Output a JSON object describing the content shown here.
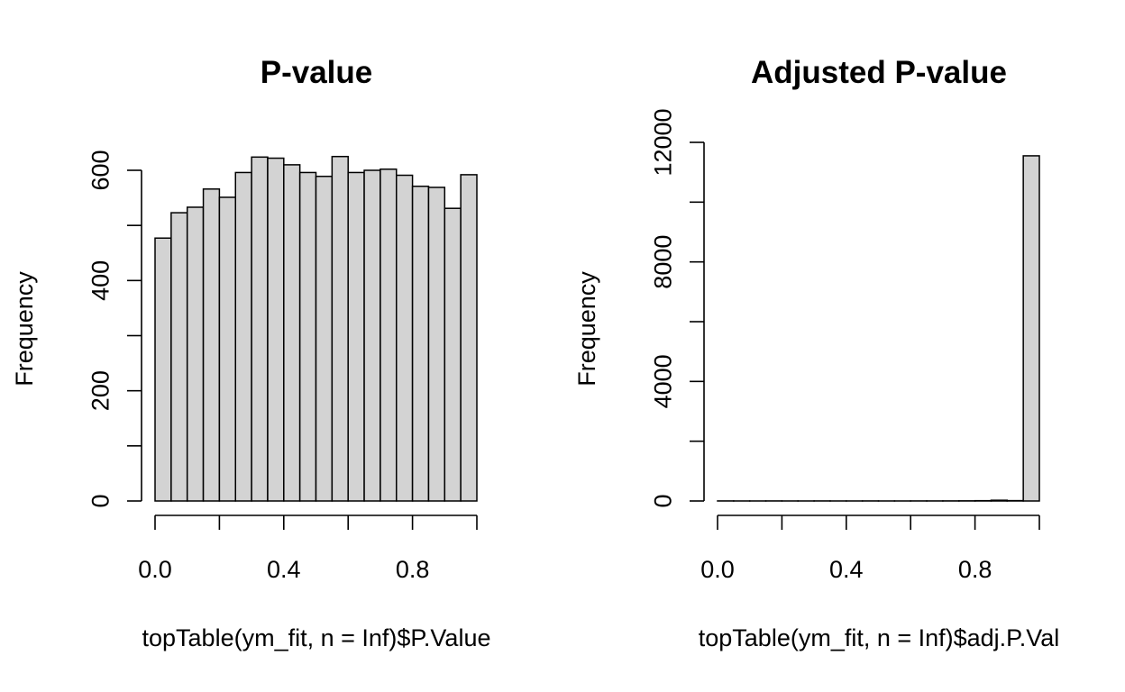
{
  "chart_data": [
    {
      "type": "bar",
      "subtype": "histogram",
      "title": "P-value",
      "xlabel": "topTable(ym_fit, n = Inf)$P.Value",
      "ylabel": "Frequency",
      "bin_edges": [
        0.0,
        0.05,
        0.1,
        0.15,
        0.2,
        0.25,
        0.3,
        0.35,
        0.4,
        0.45,
        0.5,
        0.55,
        0.6,
        0.65,
        0.7,
        0.75,
        0.8,
        0.85,
        0.9,
        0.95,
        1.0
      ],
      "values": [
        477,
        523,
        533,
        566,
        551,
        596,
        624,
        622,
        610,
        596,
        589,
        625,
        596,
        600,
        602,
        591,
        571,
        569,
        531,
        592
      ],
      "xlim": [
        0,
        1
      ],
      "ylim": [
        0,
        600
      ],
      "x_ticks": [
        0.0,
        0.2,
        0.4,
        0.6,
        0.8,
        1.0
      ],
      "x_tick_labels": [
        "0.0",
        "",
        "0.4",
        "",
        "0.8",
        ""
      ],
      "y_ticks": [
        0,
        100,
        200,
        300,
        400,
        500,
        600
      ],
      "y_tick_labels": [
        "0",
        "",
        "200",
        "",
        "400",
        "",
        "600"
      ],
      "grid": false,
      "colors": {
        "bar_fill": "#d3d3d3",
        "bar_stroke": "#000000"
      }
    },
    {
      "type": "bar",
      "subtype": "histogram",
      "title": "Adjusted P-value",
      "xlabel": "topTable(ym_fit, n = Inf)$adj.P.Val",
      "ylabel": "Frequency",
      "bin_edges": [
        0.0,
        0.05,
        0.1,
        0.15,
        0.2,
        0.25,
        0.3,
        0.35,
        0.4,
        0.45,
        0.5,
        0.55,
        0.6,
        0.65,
        0.7,
        0.75,
        0.8,
        0.85,
        0.9,
        0.95,
        1.0
      ],
      "values": [
        2,
        1,
        1,
        2,
        1,
        1,
        2,
        1,
        1,
        2,
        1,
        1,
        2,
        2,
        3,
        5,
        10,
        25,
        12,
        11550
      ],
      "xlim": [
        0,
        1
      ],
      "ylim": [
        0,
        12000
      ],
      "x_ticks": [
        0.0,
        0.2,
        0.4,
        0.6,
        0.8,
        1.0
      ],
      "x_tick_labels": [
        "0.0",
        "",
        "0.4",
        "",
        "0.8",
        ""
      ],
      "y_ticks": [
        0,
        2000,
        4000,
        6000,
        8000,
        10000,
        12000
      ],
      "y_tick_labels": [
        "0",
        "",
        "4000",
        "",
        "8000",
        "",
        "12000"
      ],
      "grid": false,
      "colors": {
        "bar_fill": "#d3d3d3",
        "bar_stroke": "#000000"
      }
    }
  ]
}
